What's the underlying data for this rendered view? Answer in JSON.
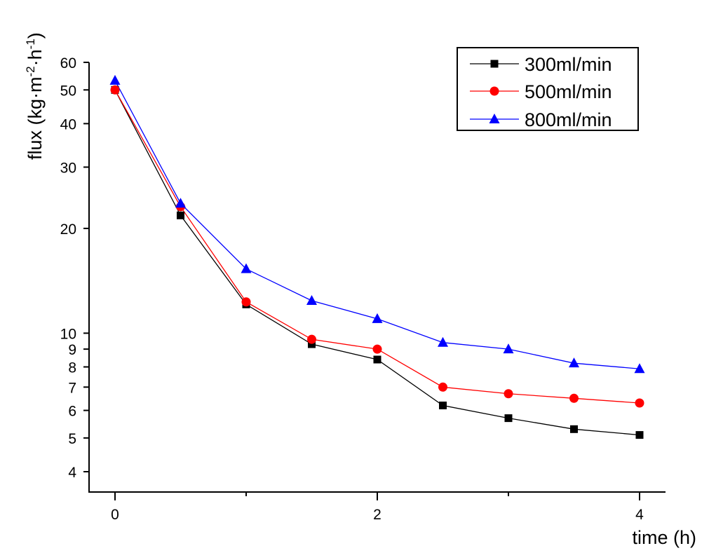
{
  "chart_data": {
    "type": "line",
    "title": "",
    "xlabel": "time (h)",
    "ylabel_main": "flux (kg·m",
    "ylabel_sup1": "-2",
    "ylabel_mid": "·h",
    "ylabel_sup2": "-1",
    "ylabel_end": ")",
    "ylabel": "flux (kg·m-2·h-1)",
    "yscale": "log",
    "xlim": [
      -0.2,
      4.2
    ],
    "ylim": [
      3.5,
      60
    ],
    "x_major_ticks": [
      0,
      2,
      4
    ],
    "x_major_tick_labels": [
      "0",
      "2",
      "4"
    ],
    "x_minor_ticks": [
      1,
      3
    ],
    "y_ticks": [
      4,
      5,
      6,
      7,
      8,
      9,
      10,
      20,
      30,
      40,
      50,
      60
    ],
    "y_tick_labels": [
      "4",
      "5",
      "6",
      "7",
      "8",
      "9",
      "10",
      "20",
      "30",
      "40",
      "50",
      "60"
    ],
    "grid": false,
    "legend_position": "top-right",
    "x": [
      0,
      0.5,
      1,
      1.5,
      2,
      2.5,
      3,
      3.5,
      4
    ],
    "series": [
      {
        "name": "300ml/min",
        "color": "#000000",
        "marker": "square",
        "values": [
          50.0,
          21.8,
          12.1,
          9.3,
          8.4,
          6.2,
          5.7,
          5.3,
          5.1
        ]
      },
      {
        "name": "500ml/min",
        "color": "#ff0000",
        "marker": "circle",
        "values": [
          50.0,
          23.1,
          12.3,
          9.6,
          9.0,
          7.0,
          6.7,
          6.5,
          6.3
        ]
      },
      {
        "name": "800ml/min",
        "color": "#0000ff",
        "marker": "triangle",
        "values": [
          53.2,
          23.6,
          15.3,
          12.4,
          11.0,
          9.4,
          9.0,
          8.2,
          7.9
        ]
      }
    ]
  }
}
